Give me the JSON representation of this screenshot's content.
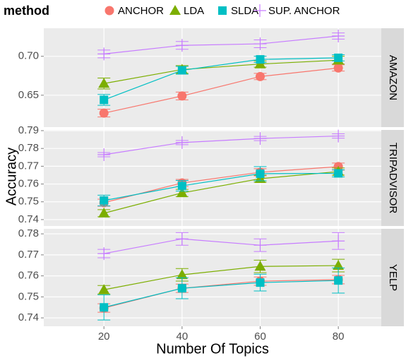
{
  "chart_data": {
    "type": "line",
    "legend_title": "method",
    "x_label": "Number Of Topics",
    "y_label": "Accuracy",
    "x": [
      20,
      40,
      60,
      80
    ],
    "xlim": [
      4.6,
      91.0
    ],
    "xticks": [
      20,
      40,
      60,
      80
    ],
    "series": [
      {
        "name": "ANCHOR",
        "color": "#F8766D",
        "shape": "circle"
      },
      {
        "name": "LDA",
        "color": "#7CAE00",
        "shape": "triangle"
      },
      {
        "name": "SLDA",
        "color": "#00BFC4",
        "shape": "square"
      },
      {
        "name": "SUP. ANCHOR",
        "color": "#C77CFF",
        "shape": "cross"
      }
    ],
    "facets": [
      {
        "title": "AMAZON",
        "ylim": [
          0.609,
          0.736
        ],
        "yticks": [
          0.65,
          {
            "value": 0.7,
            "label": "0.70"
          }
        ],
        "series": [
          {
            "values": [
              0.627,
              0.649,
              0.674,
              0.685
            ],
            "errors": [
              0.005,
              0.005,
              0.004,
              0.004
            ]
          },
          {
            "values": [
              0.665,
              0.683,
              0.69,
              0.695
            ],
            "errors": [
              0.007,
              0.005,
              0.004,
              0.005
            ]
          },
          {
            "values": [
              0.644,
              0.682,
              0.696,
              0.698
            ],
            "errors": [
              0.007,
              0.005,
              0.004,
              0.004
            ]
          },
          {
            "values": [
              0.703,
              0.714,
              0.716,
              0.726
            ],
            "errors": [
              0.005,
              0.005,
              0.005,
              0.004
            ]
          }
        ]
      },
      {
        "title": "TRIPADVISOR",
        "ylim": [
          0.7364,
          0.7904
        ],
        "yticks": [
          0.74,
          0.75,
          0.76,
          0.77,
          0.78,
          0.79
        ],
        "series": [
          {
            "values": [
              0.7495,
              0.7606,
              0.7666,
              0.7698
            ],
            "errors": [
              0.002,
              0.002,
              0.002,
              0.002
            ]
          },
          {
            "values": [
              0.7436,
              0.755,
              0.763,
              0.767
            ],
            "errors": [
              0.002,
              0.002,
              0.002,
              0.002
            ]
          },
          {
            "values": [
              0.7507,
              0.759,
              0.7658,
              0.766
            ],
            "errors": [
              0.003,
              0.003,
              0.004,
              0.002
            ]
          },
          {
            "values": [
              0.7765,
              0.7833,
              0.7856,
              0.787
            ],
            "errors": [
              0.0012,
              0.0012,
              0.0012,
              0.0012
            ]
          }
        ]
      },
      {
        "title": "YELP",
        "ylim": [
          0.736,
          0.7824
        ],
        "yticks": [
          0.74,
          0.75,
          0.76,
          0.77,
          0.78
        ],
        "series": [
          {
            "values": [
              0.7447,
              0.7541,
              0.7575,
              0.7582
            ],
            "errors": [
              0.002,
              0.002,
              0.002,
              0.002
            ]
          },
          {
            "values": [
              0.7534,
              0.7605,
              0.7645,
              0.7649
            ],
            "errors": [
              0.002,
              0.003,
              0.003,
              0.003
            ]
          },
          {
            "values": [
              0.745,
              0.7541,
              0.7568,
              0.7578
            ],
            "errors": [
              0.006,
              0.005,
              0.004,
              0.006
            ]
          },
          {
            "values": [
              0.7706,
              0.7776,
              0.7746,
              0.7766
            ],
            "errors": [
              0.002,
              0.003,
              0.003,
              0.004
            ]
          }
        ]
      }
    ]
  }
}
